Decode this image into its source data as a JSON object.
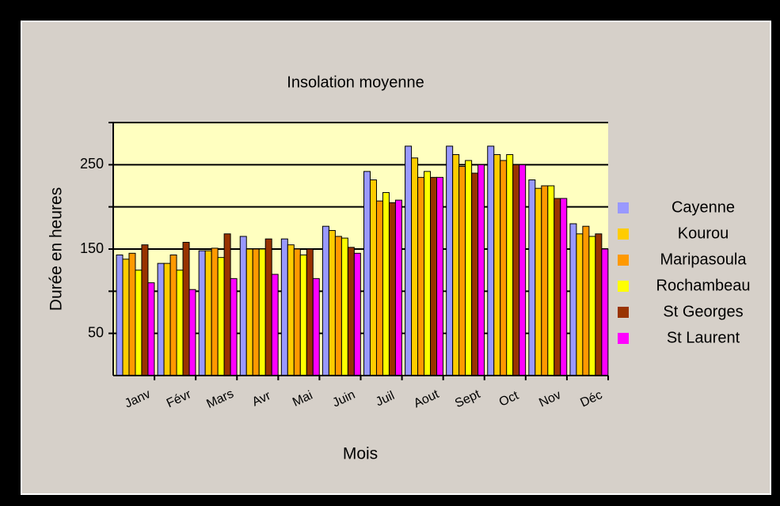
{
  "chart_data": {
    "type": "bar",
    "title": "Insolation moyenne",
    "x_label": "Mois",
    "y_label": "Durée en heures",
    "categories": [
      "Janv",
      "Févr",
      "Mars",
      "Avr",
      "Mai",
      "Juin",
      "Juil",
      "Aout",
      "Sept",
      "Oct",
      "Nov",
      "Déc"
    ],
    "series": [
      {
        "name": "Cayenne",
        "color": "#9999ff",
        "values": [
          143,
          133,
          148,
          165,
          162,
          177,
          242,
          272,
          272,
          272,
          232,
          180
        ]
      },
      {
        "name": "Kourou",
        "color": "#ffcc00",
        "values": [
          138,
          133,
          148,
          150,
          155,
          172,
          232,
          258,
          262,
          262,
          222,
          168
        ]
      },
      {
        "name": "Maripasoula",
        "color": "#ff9900",
        "values": [
          145,
          143,
          151,
          150,
          150,
          165,
          207,
          235,
          248,
          255,
          225,
          177
        ]
      },
      {
        "name": "Rochambeau",
        "color": "#ffff00",
        "values": [
          125,
          125,
          140,
          150,
          143,
          163,
          217,
          242,
          255,
          262,
          225,
          165
        ]
      },
      {
        "name": "St Georges",
        "color": "#993300",
        "values": [
          155,
          158,
          168,
          162,
          150,
          152,
          205,
          235,
          240,
          250,
          210,
          168
        ]
      },
      {
        "name": "St Laurent",
        "color": "#ff00ff",
        "values": [
          110,
          102,
          115,
          120,
          115,
          145,
          208,
          235,
          250,
          250,
          210,
          150
        ]
      }
    ],
    "ylim": [
      0,
      300
    ],
    "yticks": [
      50,
      150,
      250
    ],
    "minor_yticks": [
      100,
      200,
      300
    ],
    "grid": true,
    "legend": "right",
    "plot_background": "#ffffc0"
  }
}
